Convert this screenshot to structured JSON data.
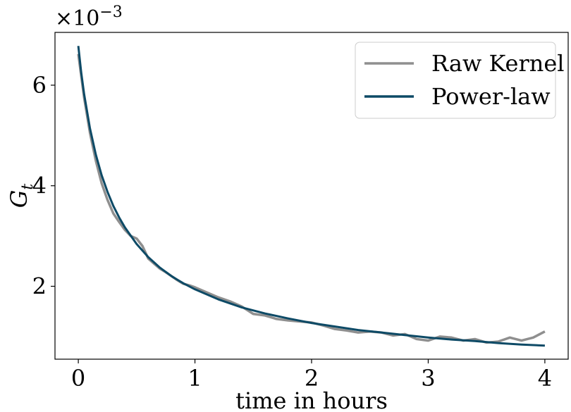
{
  "chart_data": {
    "type": "line",
    "title": "",
    "xlabel": "time in hours",
    "ylabel": "G",
    "ylabel_subscript": "t",
    "y_scale_label": {
      "base": "×10",
      "exponent": "−3"
    },
    "xlim": [
      -0.2,
      4.2
    ],
    "ylim": [
      0.55,
      7.05
    ],
    "x_ticks": [
      0,
      1,
      2,
      3,
      4
    ],
    "x_tick_labels": [
      "0",
      "1",
      "2",
      "3",
      "4"
    ],
    "y_ticks": [
      2,
      4,
      6
    ],
    "y_tick_labels": [
      "2",
      "4",
      "6"
    ],
    "grid": false,
    "legend": {
      "placement": "top-right"
    },
    "series": [
      {
        "name": "Raw Kernel",
        "color": "#8f8f8f",
        "x": [
          0,
          0.05,
          0.1,
          0.15,
          0.2,
          0.25,
          0.3,
          0.35,
          0.4,
          0.45,
          0.5,
          0.55,
          0.6,
          0.65,
          0.7,
          0.75,
          0.8,
          0.85,
          0.9,
          0.95,
          1.0,
          1.1,
          1.2,
          1.3,
          1.4,
          1.5,
          1.6,
          1.7,
          1.8,
          1.9,
          2.0,
          2.1,
          2.2,
          2.3,
          2.4,
          2.5,
          2.6,
          2.7,
          2.8,
          2.9,
          3.0,
          3.1,
          3.2,
          3.3,
          3.4,
          3.5,
          3.6,
          3.7,
          3.8,
          3.9,
          4.0
        ],
        "y": [
          6.62,
          5.75,
          5.05,
          4.5,
          4.05,
          3.72,
          3.45,
          3.28,
          3.12,
          3.0,
          2.95,
          2.8,
          2.55,
          2.45,
          2.35,
          2.28,
          2.2,
          2.12,
          2.05,
          2.02,
          1.98,
          1.88,
          1.78,
          1.7,
          1.6,
          1.45,
          1.42,
          1.35,
          1.32,
          1.3,
          1.28,
          1.22,
          1.15,
          1.12,
          1.08,
          1.1,
          1.08,
          1.02,
          1.05,
          0.95,
          0.92,
          1.0,
          0.98,
          0.92,
          0.95,
          0.88,
          0.9,
          0.98,
          0.92,
          0.98,
          1.1
        ]
      },
      {
        "name": "Power-law",
        "color": "#0d4a66",
        "x": [
          0,
          0.025,
          0.05,
          0.1,
          0.15,
          0.2,
          0.25,
          0.3,
          0.35,
          0.4,
          0.5,
          0.6,
          0.7,
          0.8,
          0.9,
          1.0,
          1.2,
          1.4,
          1.6,
          1.8,
          2.0,
          2.2,
          2.4,
          2.6,
          2.8,
          3.0,
          3.2,
          3.4,
          3.6,
          3.8,
          4.0
        ],
        "y": [
          6.78,
          6.25,
          5.82,
          5.14,
          4.62,
          4.21,
          3.88,
          3.6,
          3.37,
          3.17,
          2.84,
          2.58,
          2.37,
          2.2,
          2.06,
          1.94,
          1.74,
          1.58,
          1.46,
          1.36,
          1.27,
          1.2,
          1.13,
          1.08,
          1.03,
          0.98,
          0.94,
          0.91,
          0.87,
          0.84,
          0.82
        ]
      }
    ]
  }
}
